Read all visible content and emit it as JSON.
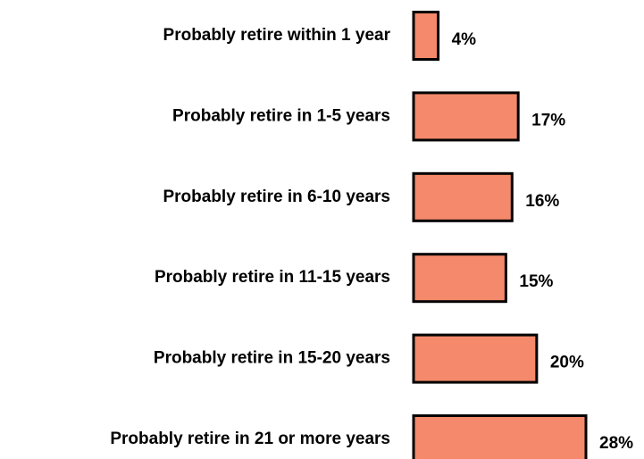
{
  "chart_data": {
    "type": "hbar",
    "categories": [
      "Probably retire within 1 year",
      "Probably retire in 1-5 years",
      "Probably retire in 6-10 years",
      "Probably retire in 11-15 years",
      "Probably retire in 15-20 years",
      "Probably retire in 21 or more years"
    ],
    "values": [
      4,
      17,
      16,
      15,
      20,
      28
    ],
    "value_labels": [
      "4%",
      "17%",
      "16%",
      "15%",
      "20%",
      "28%"
    ],
    "color": "#f4896b"
  }
}
